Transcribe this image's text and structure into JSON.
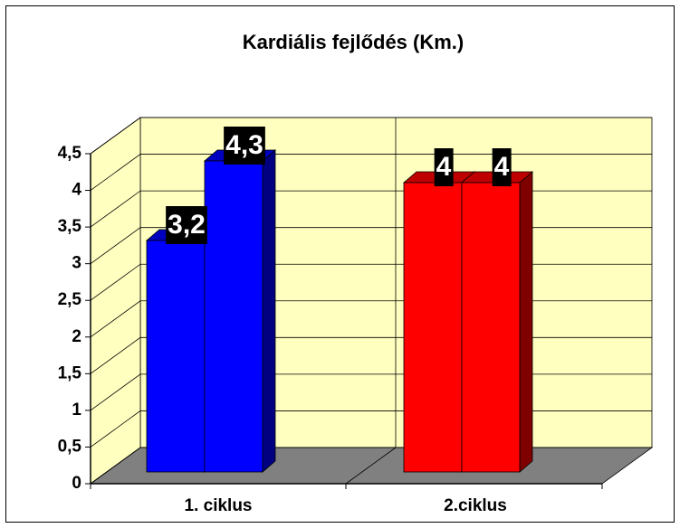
{
  "chart_data": {
    "type": "bar3d",
    "title": "Kardiális fejlődés (Km.)",
    "categories": [
      "1. ciklus",
      "2.ciklus"
    ],
    "colors": [
      "#0000ff",
      "#ff0000"
    ],
    "series": [
      {
        "values": [
          3.2,
          4
        ],
        "value_labels": [
          "3,2",
          "4"
        ]
      },
      {
        "values": [
          4.3,
          4
        ],
        "value_labels": [
          "4,3",
          "4"
        ]
      }
    ],
    "ylim": [
      0,
      4.5
    ],
    "yticks": [
      0,
      {
        "value": 0.5,
        "label": "0,5"
      },
      1,
      {
        "value": 1.5,
        "label": "1,5"
      },
      2,
      {
        "value": 2.5,
        "label": "2,5"
      },
      3,
      {
        "value": 3.5,
        "label": "3,5"
      },
      4,
      {
        "value": 4.5,
        "label": "4,5"
      }
    ],
    "grid": true
  }
}
